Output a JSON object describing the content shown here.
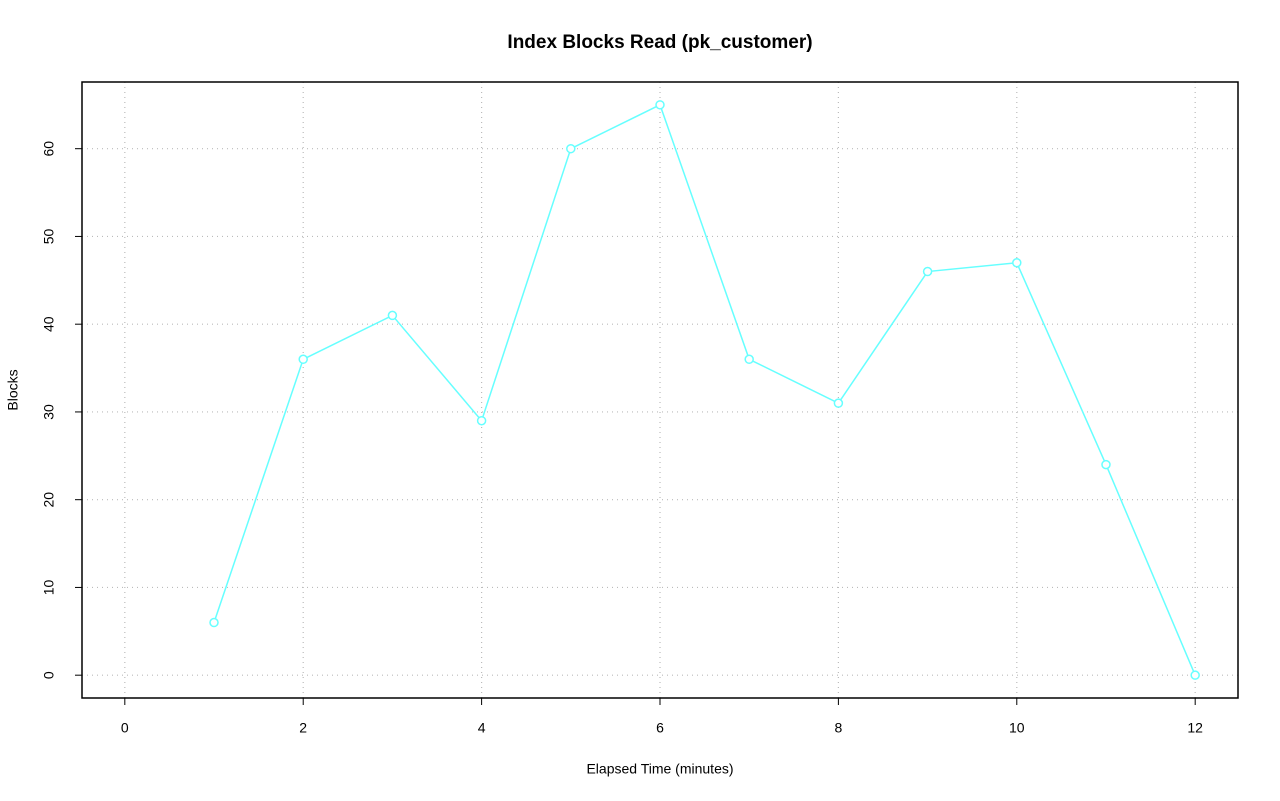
{
  "chart_data": {
    "type": "line",
    "title": "Index Blocks Read (pk_customer)",
    "x_label": "Elapsed Time (minutes)",
    "y_label": "Blocks",
    "x": [
      1,
      2,
      3,
      4,
      5,
      6,
      7,
      8,
      9,
      10,
      11,
      12
    ],
    "series": [
      {
        "color": "#66ffff",
        "values": [
          6,
          36,
          41,
          29,
          60,
          65,
          36,
          31,
          46,
          47,
          24,
          0
        ]
      }
    ],
    "xlim": [
      -0.48,
      12.48
    ],
    "xticks": [
      0,
      2,
      4,
      6,
      8,
      10,
      12
    ],
    "ylim": [
      -2.6,
      67.6
    ],
    "yticks": [
      0,
      10,
      20,
      30,
      40,
      50,
      60
    ],
    "grid": true
  }
}
